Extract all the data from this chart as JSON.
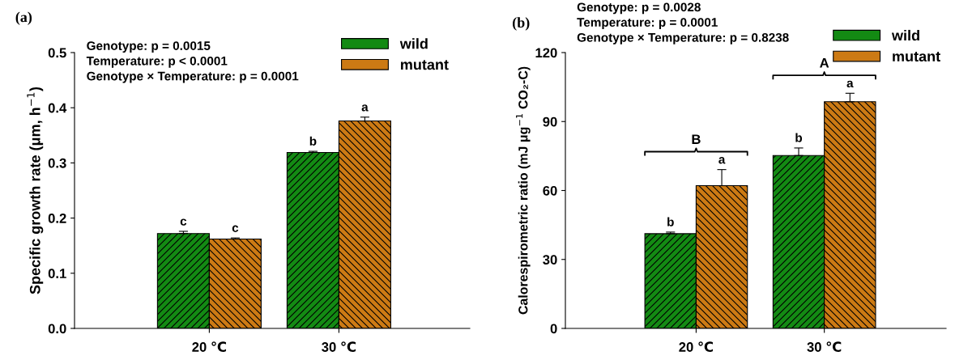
{
  "chart_data": [
    {
      "type": "bar",
      "ylabel": "Specific growth rate (μm, h$^{−1}$)",
      "categories": [
        "20 ℃",
        "30 ℃"
      ],
      "series": [
        {
          "name": "wild",
          "color": "#138a13",
          "values": [
            0.172,
            0.319
          ],
          "errors": [
            [
              0.172,
              0.176
            ],
            [
              0.319,
              0.321
            ]
          ],
          "value_labels": [
            "c",
            "b"
          ]
        },
        {
          "name": "mutant",
          "color": "#cc7a14",
          "values": [
            0.162,
            0.376
          ],
          "errors": [
            [
              0.162,
              0.164
            ],
            [
              0.376,
              0.383
            ]
          ],
          "value_labels": [
            "c",
            "a"
          ]
        }
      ],
      "ylim": [
        0,
        0.5
      ],
      "yticks": [
        {
          "value": 0,
          "label": "0.0"
        },
        0.1,
        0.2,
        0.3,
        0.4,
        0.5
      ],
      "legend": "top right",
      "grid": false,
      "annotations": [
        "(a)",
        "Genotype: p = 0.0015",
        "Temperature: p < 0.0001",
        "Genotype × Temperature: p = 0.0001"
      ]
    },
    {
      "type": "bar",
      "ylabel": "Calorespirometric ratio (mJ μg$^{−1}$ CO₂-C)",
      "categories": [
        "20 ℃",
        "30 ℃"
      ],
      "series": [
        {
          "name": "wild",
          "color": "#138a13",
          "values": [
            41.2,
            75.2
          ],
          "errors": [
            [
              41.2,
              41.9
            ],
            [
              75.2,
              78.5
            ]
          ],
          "value_labels": [
            "b",
            "b"
          ]
        },
        {
          "name": "mutant",
          "color": "#cc7a14",
          "values": [
            62.1,
            98.6
          ],
          "errors": [
            [
              62.1,
              69.1
            ],
            [
              98.6,
              102.3
            ]
          ],
          "value_labels": [
            "a",
            "a"
          ]
        }
      ],
      "ylim": [
        0,
        120
      ],
      "yticks": [
        0,
        30,
        60,
        90,
        120
      ],
      "legend": "top right",
      "grid": false,
      "annotations": [
        "(b)",
        "Genotype: p = 0.0028",
        "Temperature: p = 0.0001",
        "Genotype × Temperature: p = 0.8238",
        "B",
        "A"
      ]
    }
  ]
}
